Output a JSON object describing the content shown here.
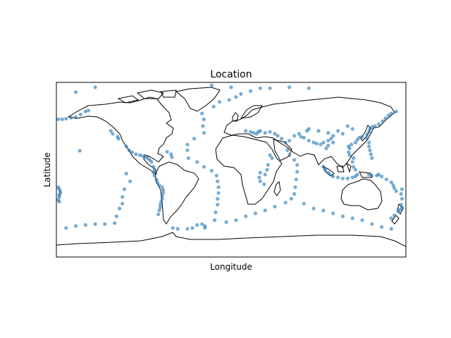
{
  "chart_data": {
    "type": "scatter",
    "title": "Location",
    "xlabel": "Longitude",
    "ylabel": "Latitude",
    "projection": "equirectangular",
    "xlim": [
      -180,
      180
    ],
    "ylim": [
      -90,
      90
    ],
    "grid": false,
    "ticks": false,
    "point_color": "#1f77b4",
    "point_alpha": 0.2,
    "coastline_color": "#000000",
    "series": [
      {
        "values": [
          [
            -178,
            52
          ],
          [
            -174,
            52
          ],
          [
            -170,
            52.5
          ],
          [
            -165,
            53.5
          ],
          [
            -160,
            54
          ],
          [
            -155,
            57
          ],
          [
            -150,
            60
          ],
          [
            -147,
            61
          ],
          [
            -178,
            -18
          ],
          [
            -177,
            -20
          ],
          [
            -176,
            -22
          ],
          [
            -176,
            -24
          ],
          [
            -177,
            -26
          ],
          [
            -177,
            -28
          ],
          [
            -178,
            -31
          ],
          [
            -177,
            -33
          ],
          [
            -156,
            19.5
          ],
          [
            -124,
            40
          ],
          [
            -122,
            37
          ],
          [
            -117,
            34
          ],
          [
            -116,
            32
          ],
          [
            -108,
            24
          ],
          [
            -105,
            20
          ],
          [
            -102,
            18
          ],
          [
            -98,
            16
          ],
          [
            -94,
            15
          ],
          [
            -91,
            14
          ],
          [
            -88,
            13
          ],
          [
            -86,
            12
          ],
          [
            -84,
            10
          ],
          [
            -82,
            8
          ],
          [
            -80,
            3
          ],
          [
            -79,
            0
          ],
          [
            -80,
            -3
          ],
          [
            -79,
            -6
          ],
          [
            -77,
            -10
          ],
          [
            -76,
            -13
          ],
          [
            -74,
            -16
          ],
          [
            -71,
            -18
          ],
          [
            -70,
            -21
          ],
          [
            -70,
            -24
          ],
          [
            -71,
            -27
          ],
          [
            -71,
            -30
          ],
          [
            -72,
            -33
          ],
          [
            -73,
            -36
          ],
          [
            -73,
            -39
          ],
          [
            -74,
            -42
          ],
          [
            -75,
            -46
          ],
          [
            -66,
            18.5
          ],
          [
            -62,
            16
          ],
          [
            -61,
            13
          ],
          [
            -30,
            58
          ],
          [
            -28,
            52
          ],
          [
            -29,
            45
          ],
          [
            -28,
            38
          ],
          [
            -38,
            32
          ],
          [
            -45,
            26
          ],
          [
            -45,
            20
          ],
          [
            -44,
            12
          ],
          [
            -35,
            8
          ],
          [
            -28,
            3
          ],
          [
            -20,
            -1
          ],
          [
            -15,
            -6
          ],
          [
            -14,
            -12
          ],
          [
            -13,
            -18
          ],
          [
            -13,
            -24
          ],
          [
            -14,
            -30
          ],
          [
            -14,
            -36
          ],
          [
            -16,
            -44
          ],
          [
            -17,
            -52
          ],
          [
            -35,
            -57
          ],
          [
            -30,
            -56
          ],
          [
            -27,
            -58
          ],
          [
            -27,
            -60
          ],
          [
            -40,
            -60
          ],
          [
            -45,
            -61
          ],
          [
            -55,
            -61
          ],
          [
            -60,
            -60
          ],
          [
            -108,
            -4
          ],
          [
            -104,
            -12
          ],
          [
            -110,
            -20
          ],
          [
            -112,
            -28
          ],
          [
            -112,
            -35
          ],
          [
            -115,
            -40
          ],
          [
            -118,
            -48
          ],
          [
            -120,
            -55
          ],
          [
            -130,
            -56
          ],
          [
            -140,
            -56
          ],
          [
            -150,
            -57
          ],
          [
            -160,
            -58
          ],
          [
            -170,
            -60
          ],
          [
            -18,
            65
          ],
          [
            -12,
            70
          ],
          [
            -2,
            72
          ],
          [
            5,
            75
          ],
          [
            10,
            78
          ],
          [
            20,
            81
          ],
          [
            40,
            84
          ],
          [
            60,
            85
          ],
          [
            80,
            84
          ],
          [
            15,
            40
          ],
          [
            20,
            39
          ],
          [
            23,
            38
          ],
          [
            26,
            37
          ],
          [
            28,
            39
          ],
          [
            30,
            40
          ],
          [
            35,
            38
          ],
          [
            40,
            39
          ],
          [
            45,
            37
          ],
          [
            48,
            35
          ],
          [
            52,
            32
          ],
          [
            56,
            28
          ],
          [
            60,
            30
          ],
          [
            65,
            35
          ],
          [
            70,
            37
          ],
          [
            72,
            34
          ],
          [
            75,
            33
          ],
          [
            80,
            30
          ],
          [
            85,
            28
          ],
          [
            88,
            27
          ],
          [
            92,
            26
          ],
          [
            95,
            28
          ],
          [
            100,
            30
          ],
          [
            103,
            32
          ],
          [
            105,
            35
          ],
          [
            100,
            38
          ],
          [
            90,
            40
          ],
          [
            80,
            42
          ],
          [
            78,
            40
          ],
          [
            38,
            5
          ],
          [
            37,
            0
          ],
          [
            35,
            -5
          ],
          [
            30,
            -3
          ],
          [
            29,
            -8
          ],
          [
            30,
            -12
          ],
          [
            34,
            -15
          ],
          [
            40,
            15
          ],
          [
            42,
            12
          ],
          [
            58,
            20
          ],
          [
            60,
            15
          ],
          [
            65,
            10
          ],
          [
            68,
            5
          ],
          [
            68,
            -2
          ],
          [
            67,
            -10
          ],
          [
            66,
            -18
          ],
          [
            65,
            -25
          ],
          [
            62,
            -30
          ],
          [
            56,
            -34
          ],
          [
            45,
            -38
          ],
          [
            35,
            -42
          ],
          [
            25,
            -45
          ],
          [
            15,
            -48
          ],
          [
            5,
            -52
          ],
          [
            -5,
            -54
          ],
          [
            75,
            -35
          ],
          [
            85,
            -40
          ],
          [
            95,
            -42
          ],
          [
            105,
            -45
          ],
          [
            115,
            -48
          ],
          [
            125,
            -50
          ],
          [
            135,
            -52
          ],
          [
            145,
            -56
          ],
          [
            155,
            -59
          ],
          [
            165,
            -61
          ],
          [
            95,
            3
          ],
          [
            97,
            0
          ],
          [
            100,
            -3
          ],
          [
            102,
            -5
          ],
          [
            105,
            -7
          ],
          [
            110,
            -8
          ],
          [
            115,
            -9
          ],
          [
            120,
            -9
          ],
          [
            125,
            -8
          ],
          [
            128,
            -7
          ],
          [
            130,
            -5
          ],
          [
            128,
            0
          ],
          [
            126,
            3
          ],
          [
            125,
            8
          ],
          [
            126,
            12
          ],
          [
            122,
            15
          ],
          [
            121,
            18
          ],
          [
            122,
            22
          ],
          [
            121,
            24
          ],
          [
            124,
            26
          ],
          [
            128,
            28
          ],
          [
            130,
            31
          ],
          [
            132,
            33
          ],
          [
            135,
            34
          ],
          [
            140,
            36
          ],
          [
            142,
            39
          ],
          [
            143,
            42
          ],
          [
            145,
            44
          ],
          [
            148,
            45
          ],
          [
            152,
            47
          ],
          [
            156,
            50
          ],
          [
            159,
            53
          ],
          [
            162,
            56
          ],
          [
            165,
            58
          ],
          [
            170,
            60
          ],
          [
            140,
            32
          ],
          [
            142,
            28
          ],
          [
            142,
            24
          ],
          [
            143,
            20
          ],
          [
            144,
            16
          ],
          [
            145,
            12
          ],
          [
            142,
            -5
          ],
          [
            145,
            -6
          ],
          [
            150,
            -6
          ],
          [
            152,
            -5
          ],
          [
            155,
            -7
          ],
          [
            160,
            -10
          ],
          [
            165,
            -13
          ],
          [
            167,
            -16
          ],
          [
            168,
            -19
          ],
          [
            170,
            -22
          ],
          [
            176,
            -20
          ],
          [
            175,
            -25
          ],
          [
            176,
            -30
          ],
          [
            175,
            -36
          ],
          [
            176,
            -39
          ],
          [
            174,
            -41
          ],
          [
            172,
            -43
          ],
          [
            168,
            -47
          ],
          [
            165,
            -50
          ],
          [
            120,
            45
          ],
          [
            125,
            42
          ],
          [
            110,
            40
          ],
          [
            115,
            37
          ],
          [
            100,
            25
          ],
          [
            98,
            22
          ],
          [
            105,
            28
          ],
          [
            -160,
            80
          ],
          [
            -140,
            85
          ],
          [
            -20,
            87
          ],
          [
            0,
            85
          ],
          [
            30,
            84
          ]
        ]
      }
    ]
  }
}
